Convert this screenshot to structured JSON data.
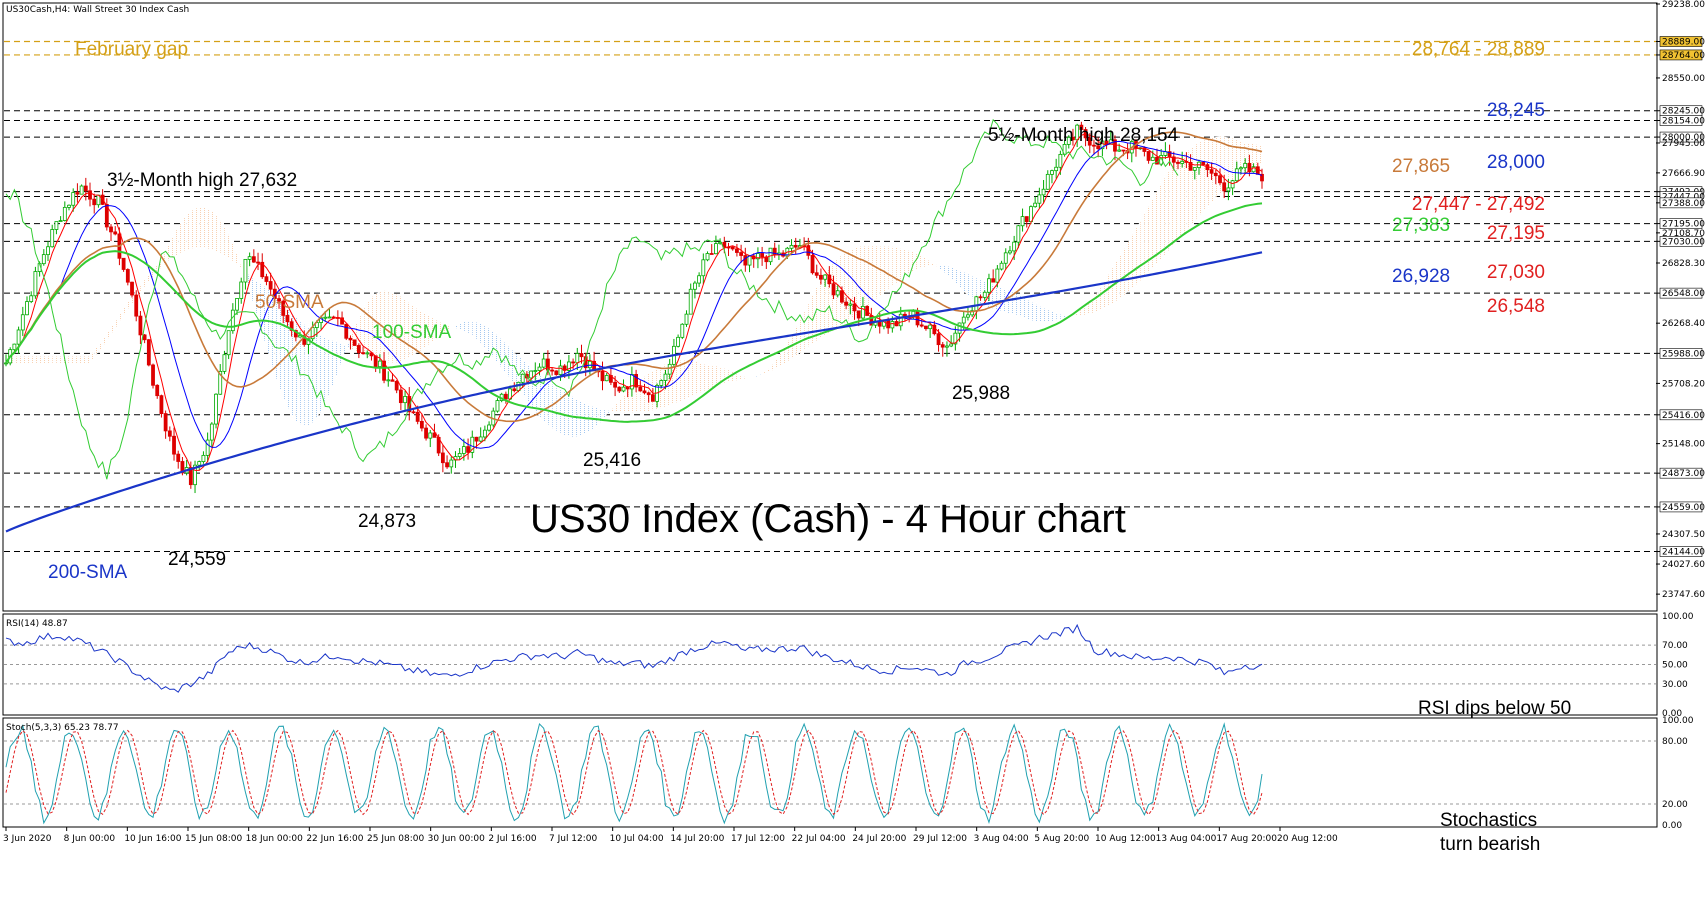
{
  "header": "US30Cash,H4: Wall Street 30 Index Cash",
  "title": "US30 Index (Cash) - 4 Hour chart",
  "chart_data": {
    "type": "line",
    "symbol": "US30Cash",
    "timeframe": "H4",
    "ylim": [
      23600,
      29238
    ],
    "price_axis_labels": [
      "29238.00",
      "28889.00",
      "28764.00",
      "28550.00",
      "28245.00",
      "28154.00",
      "28000.00",
      "27945.00",
      "27666.90",
      "27492.00",
      "27447.00",
      "27388.00",
      "27195.00",
      "27108.70",
      "27030.00",
      "26828.30",
      "26548.00",
      "26268.40",
      "25988.00",
      "25708.20",
      "25416.00",
      "25148.00",
      "24873.00",
      "24559.00",
      "24307.50",
      "24144.00",
      "24027.60",
      "23747.60"
    ],
    "time_labels": [
      "3 Jun 2020",
      "8 Jun 00:00",
      "10 Jun 16:00",
      "15 Jun 08:00",
      "18 Jun 00:00",
      "22 Jun 16:00",
      "25 Jun 08:00",
      "30 Jun 00:00",
      "2 Jul 16:00",
      "7 Jul 12:00",
      "10 Jul 04:00",
      "14 Jul 20:00",
      "17 Jul 12:00",
      "22 Jul 04:00",
      "24 Jul 20:00",
      "29 Jul 12:00",
      "3 Aug 04:00",
      "5 Aug 20:00",
      "10 Aug 12:00",
      "13 Aug 04:00",
      "17 Aug 20:00",
      "20 Aug 12:00"
    ],
    "highlighted_price_labels": [
      "28889.00",
      "28764.00",
      "28245.00",
      "28154.00",
      "28000.00",
      "27492.00",
      "27447.00",
      "27388.00",
      "27195.00",
      "27030.00",
      "26548.00",
      "25988.00",
      "25416.00",
      "24873.00",
      "24559.00",
      "24144.00"
    ],
    "close_path": [
      25900,
      26400,
      26900,
      27300,
      27550,
      27400,
      27000,
      26400,
      25700,
      25100,
      24800,
      25200,
      26200,
      26900,
      26700,
      26350,
      26100,
      26250,
      26300,
      26050,
      25900,
      25700,
      25400,
      25200,
      24950,
      25100,
      25350,
      25600,
      25800,
      25900,
      25850,
      26000,
      25800,
      25650,
      25750,
      25600,
      25900,
      26500,
      26900,
      27000,
      26800,
      26900,
      26900,
      27000,
      26700,
      26550,
      26400,
      26300,
      26250,
      26350,
      26200,
      26050,
      26400,
      26550,
      26900,
      27200,
      27500,
      27800,
      28050,
      27950,
      27900,
      27900,
      27800,
      27800,
      27750,
      27700,
      27550,
      27700,
      27650
    ],
    "support_resistance": [
      {
        "label": "February gap",
        "range_label": "28,764 - 28,889",
        "low": 28764,
        "high": 28889
      },
      {
        "label": "28,245",
        "value": 28245
      },
      {
        "label": "28,000",
        "value": 28000
      },
      {
        "label": "27,447 - 27,492",
        "low": 27447,
        "high": 27492
      },
      {
        "label": "27,195",
        "value": 27195
      },
      {
        "label": "27,030",
        "value": 27030
      },
      {
        "label": "26,548",
        "value": 26548
      }
    ],
    "moving_averages": [
      {
        "name": "50-SMA",
        "current_label": "27,865",
        "current": 27865,
        "color": "#c87a3a"
      },
      {
        "name": "100-SMA",
        "current_label": "27,383",
        "current": 27383,
        "color": "#33cc33"
      },
      {
        "name": "200-SMA",
        "current_label": "26,928",
        "current": 26928,
        "color": "#1a35c8"
      }
    ],
    "annotations": [
      {
        "text": "5½-Month high 28,154",
        "value": 28154
      },
      {
        "text": "3½-Month high 27,632",
        "value": 27632
      },
      {
        "text": "24,559",
        "value": 24559
      },
      {
        "text": "24,873",
        "value": 24873
      },
      {
        "text": "25,416",
        "value": 25416
      },
      {
        "text": "25,988",
        "value": 25988
      }
    ],
    "rsi": {
      "label": "RSI(14) 48.87",
      "value": 48.87,
      "levels": [
        70,
        50,
        30
      ],
      "axis_labels": [
        "100.00",
        "70.00",
        "50.00",
        "30.00",
        "0.00"
      ],
      "note": "RSI dips below 50",
      "values": [
        74,
        72,
        78,
        80,
        74,
        65,
        55,
        42,
        30,
        22,
        30,
        40,
        62,
        70,
        66,
        58,
        52,
        56,
        60,
        54,
        52,
        48,
        44,
        40,
        38,
        44,
        50,
        55,
        58,
        60,
        58,
        62,
        56,
        50,
        52,
        48,
        56,
        65,
        70,
        72,
        64,
        66,
        66,
        68,
        60,
        55,
        50,
        45,
        44,
        48,
        44,
        40,
        52,
        56,
        64,
        70,
        78,
        82,
        88,
        64,
        62,
        58,
        56,
        58,
        54,
        52,
        40,
        50,
        48
      ]
    },
    "stochastic": {
      "label": "Stoch(5,3,3) 65.23 78.77",
      "k": 65.23,
      "d": 78.77,
      "levels": [
        80,
        20
      ],
      "axis_labels": [
        "100.00",
        "80.00",
        "20.00",
        "0.00"
      ],
      "note_line1": "Stochastics",
      "note_line2": "turn bearish"
    },
    "colors": {
      "bull_candle": "#00aa00",
      "bear_candle": "#dd0000",
      "tenkan": "#ff0000",
      "kijun": "#0000ff",
      "chikou": "#33cc33",
      "cloud_bull": "#f4a460",
      "cloud_bear": "#4a90e2",
      "resistance_text": "#1a35c8",
      "support_text": "#e02020",
      "gap_text": "#d4a017"
    }
  }
}
